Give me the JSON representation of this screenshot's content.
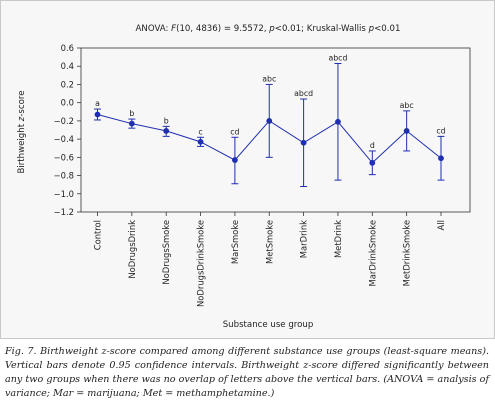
{
  "chart_data": {
    "type": "scatter",
    "title_parts": [
      {
        "text": "ANOVA: ",
        "italic": false
      },
      {
        "text": "F",
        "italic": true
      },
      {
        "text": "(10, 4836) = 9.5572, ",
        "italic": false
      },
      {
        "text": "p",
        "italic": true
      },
      {
        "text": "<0.01; Kruskal-Wallis ",
        "italic": false
      },
      {
        "text": "p",
        "italic": true
      },
      {
        "text": "<0.01",
        "italic": false
      }
    ],
    "xlabel": "Substance use group",
    "ylabel_parts": [
      {
        "text": "Birthweight ",
        "italic": false
      },
      {
        "text": "z",
        "italic": true
      },
      {
        "text": "-score",
        "italic": false
      }
    ],
    "ylim": [
      -1.2,
      0.6
    ],
    "yticks": [
      "0.6",
      "0.4",
      "0.2",
      "0.0",
      "−0.2",
      "−0.4",
      "−0.6",
      "−0.8",
      "−1.0",
      "−1.2"
    ],
    "ytick_values": [
      0.6,
      0.4,
      0.2,
      0.0,
      -0.2,
      -0.4,
      -0.6,
      -0.8,
      -1.0,
      -1.2
    ],
    "categories": [
      "Control",
      "NoDrugsDrink",
      "NoDrugsSmoke",
      "NoDrugsDrinkSmoke",
      "MarSmoke",
      "MetSmoke",
      "MarDrink",
      "MetDrink",
      "MarDrinkSmoke",
      "MetDrinkSmoke",
      "All"
    ],
    "means": [
      -0.13,
      -0.23,
      -0.31,
      -0.43,
      -0.63,
      -0.2,
      -0.44,
      -0.21,
      -0.66,
      -0.31,
      -0.61
    ],
    "ci_lower": [
      -0.19,
      -0.28,
      -0.37,
      -0.48,
      -0.89,
      -0.6,
      -0.92,
      -0.85,
      -0.79,
      -0.53,
      -0.85
    ],
    "ci_upper": [
      -0.07,
      -0.18,
      -0.26,
      -0.38,
      -0.38,
      0.2,
      0.04,
      0.43,
      -0.53,
      -0.09,
      -0.37
    ],
    "group_letters": [
      "a",
      "b",
      "b",
      "c",
      "cd",
      "abc",
      "abcd",
      "abcd",
      "d",
      "abc",
      "cd"
    ],
    "series_color": "#1f2fb0",
    "grid": false
  },
  "caption": "Fig. 7. Birthweight z-score compared among different substance use groups (least-square means). Vertical bars denote 0.95 confidence intervals. Birthweight z-score differed significantly between any two groups when there was no overlap of letters above the vertical bars. (ANOVA = analysis of variance; Mar = marijuana; Met = methamphetamine.)"
}
